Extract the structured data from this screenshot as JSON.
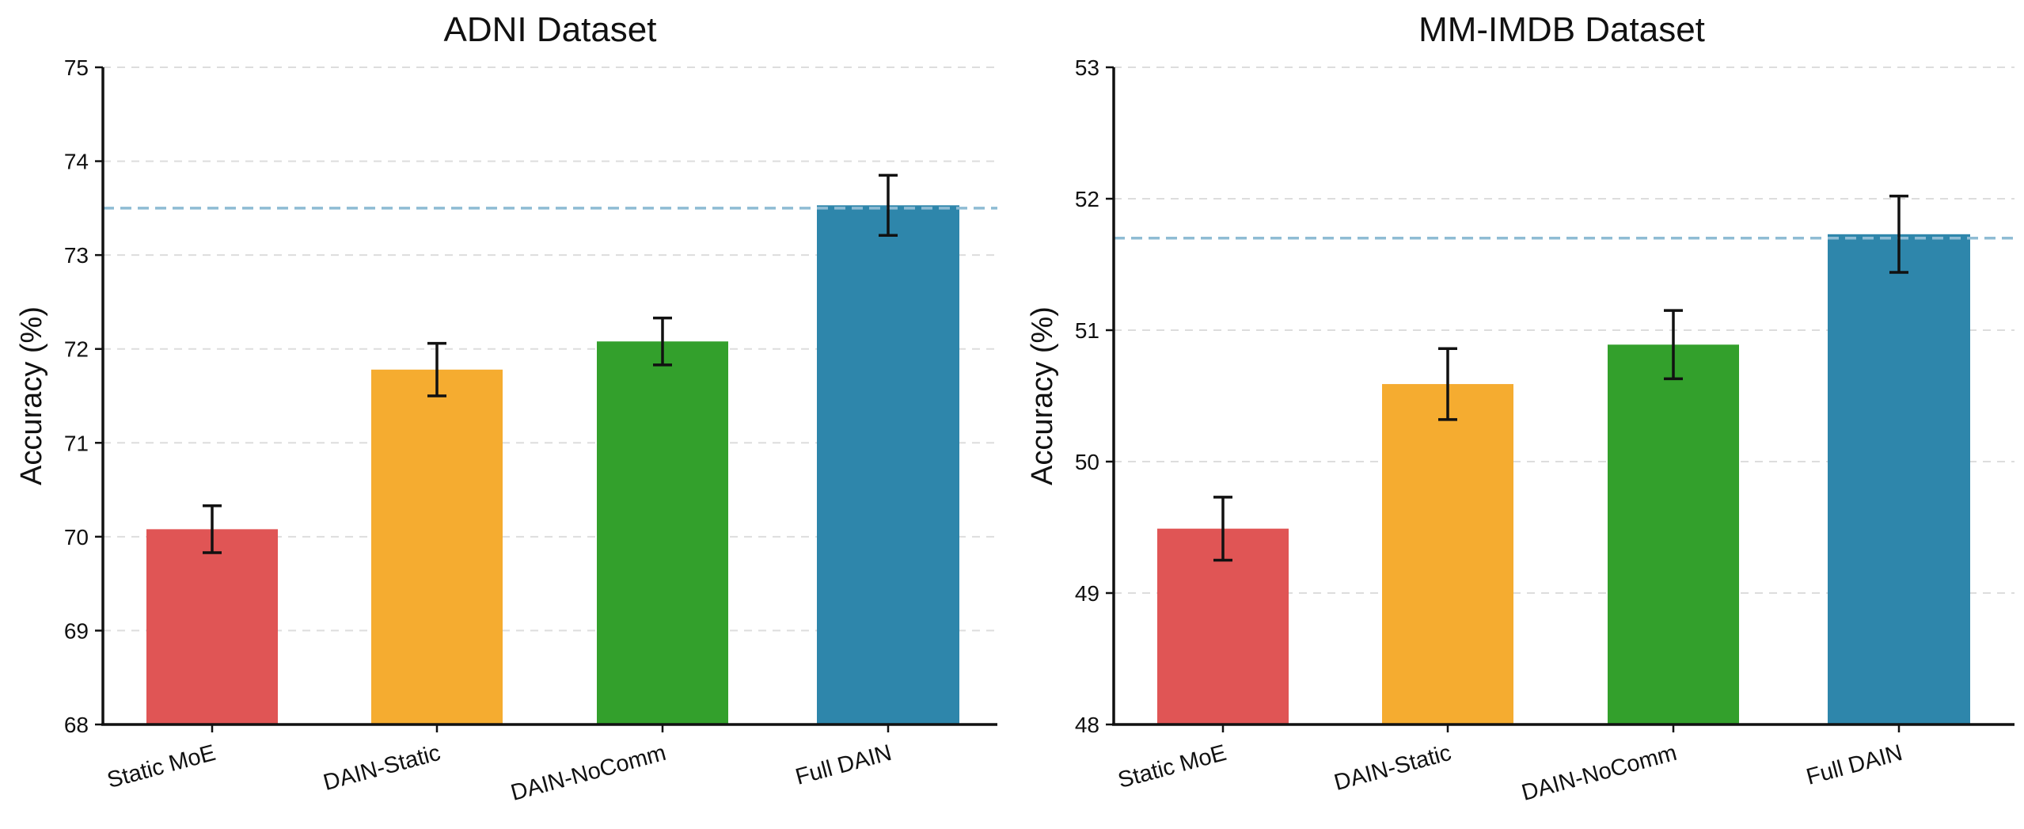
{
  "chart_data": [
    {
      "type": "bar",
      "title": "ADNI Dataset",
      "xlabel": "",
      "ylabel": "Accuracy (%)",
      "ylim": [
        68,
        75
      ],
      "yticks": [
        "68",
        "69",
        "70",
        "71",
        "72",
        "73",
        "74",
        "75"
      ],
      "categories": [
        "Static MoE",
        "DAIN-Static",
        "DAIN-NoComm",
        "Full DAIN"
      ],
      "values": [
        70.08,
        71.78,
        72.08,
        73.53
      ],
      "errors": [
        0.25,
        0.28,
        0.25,
        0.32
      ],
      "bar_colors": [
        "#e05555",
        "#f5ac30",
        "#33a02c",
        "#2e86ab"
      ],
      "reference_line": 73.5,
      "reference_color": "#8fbcd4",
      "grid": "y-dashed",
      "legend": "none"
    },
    {
      "type": "bar",
      "title": "MM-IMDB Dataset",
      "xlabel": "",
      "ylabel": "Accuracy (%)",
      "ylim": [
        48,
        53
      ],
      "yticks": [
        "48",
        "49",
        "50",
        "51",
        "52",
        "53"
      ],
      "categories": [
        "Static MoE",
        "DAIN-Static",
        "DAIN-NoComm",
        "Full DAIN"
      ],
      "values": [
        49.49,
        50.59,
        50.89,
        51.73
      ],
      "errors": [
        0.24,
        0.27,
        0.26,
        0.29
      ],
      "bar_colors": [
        "#e05555",
        "#f5ac30",
        "#33a02c",
        "#2e86ab"
      ],
      "reference_line": 51.7,
      "reference_color": "#8fbcd4",
      "grid": "y-dashed",
      "legend": "none"
    }
  ]
}
